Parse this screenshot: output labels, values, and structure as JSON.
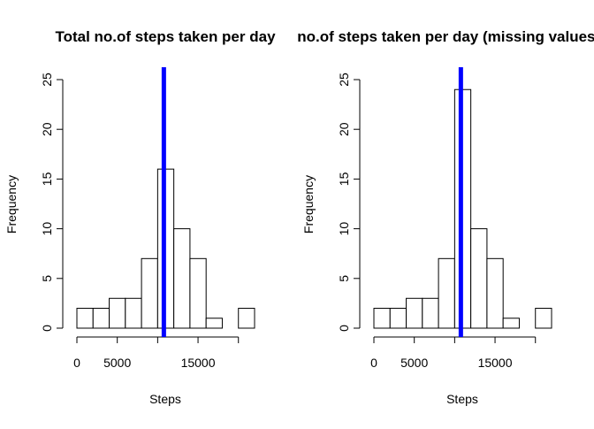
{
  "chart_data": [
    {
      "type": "bar",
      "title": "Total no.of steps taken per day",
      "xlabel": "Steps",
      "ylabel": "Frequency",
      "bin_edges": [
        0,
        2000,
        4000,
        6000,
        8000,
        10000,
        12000,
        14000,
        16000,
        18000,
        20000,
        22000
      ],
      "values": [
        2,
        2,
        3,
        3,
        7,
        16,
        10,
        7,
        1,
        0,
        2
      ],
      "xticks": [
        0,
        5000,
        10000,
        15000,
        20000
      ],
      "xtick_labels": [
        "0",
        "5000",
        "",
        "15000",
        ""
      ],
      "yticks": [
        0,
        5,
        10,
        15,
        20,
        25
      ],
      "ytick_labels": [
        "0",
        "5",
        "10",
        "15",
        "20",
        "25"
      ],
      "xlim": [
        0,
        22000
      ],
      "ylim": [
        0,
        25
      ],
      "reference_line": {
        "x": 10766,
        "color": "#0000ff"
      },
      "bar_fill": "#ffffff",
      "bar_stroke": "#000000"
    },
    {
      "type": "bar",
      "title": "Total no.of steps taken per day (missing values replaced)",
      "xlabel": "Steps",
      "ylabel": "Frequency",
      "bin_edges": [
        0,
        2000,
        4000,
        6000,
        8000,
        10000,
        12000,
        14000,
        16000,
        18000,
        20000,
        22000
      ],
      "values": [
        2,
        2,
        3,
        3,
        7,
        24,
        10,
        7,
        1,
        0,
        2
      ],
      "xticks": [
        0,
        5000,
        10000,
        15000,
        20000
      ],
      "xtick_labels": [
        "0",
        "5000",
        "",
        "15000",
        ""
      ],
      "yticks": [
        0,
        5,
        10,
        15,
        20,
        25
      ],
      "ytick_labels": [
        "0",
        "5",
        "10",
        "15",
        "20",
        "25"
      ],
      "xlim": [
        0,
        22000
      ],
      "ylim": [
        0,
        25
      ],
      "reference_line": {
        "x": 10766,
        "color": "#0000ff"
      },
      "bar_fill": "#ffffff",
      "bar_stroke": "#000000"
    }
  ]
}
